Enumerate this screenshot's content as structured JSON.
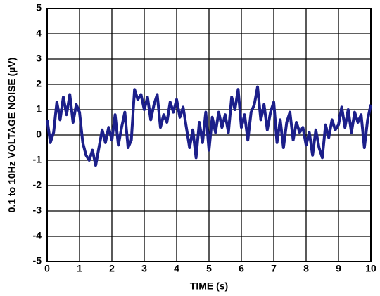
{
  "chart_data": {
    "type": "line",
    "xlabel": "TIME (s)",
    "ylabel": "0.1 to 10Hz VOLTAGE NOISE (µV)",
    "x": [
      0,
      0.1,
      0.2,
      0.3,
      0.4,
      0.5,
      0.6,
      0.7,
      0.8,
      0.9,
      1,
      1.1,
      1.2,
      1.3,
      1.4,
      1.5,
      1.6,
      1.7,
      1.8,
      1.9,
      2,
      2.1,
      2.2,
      2.3,
      2.4,
      2.5,
      2.6,
      2.7,
      2.8,
      2.9,
      3,
      3.1,
      3.2,
      3.3,
      3.4,
      3.5,
      3.6,
      3.7,
      3.8,
      3.9,
      4,
      4.1,
      4.2,
      4.3,
      4.4,
      4.5,
      4.6,
      4.7,
      4.8,
      4.9,
      5,
      5.1,
      5.2,
      5.3,
      5.4,
      5.5,
      5.6,
      5.7,
      5.8,
      5.9,
      6,
      6.1,
      6.2,
      6.3,
      6.4,
      6.5,
      6.6,
      6.7,
      6.8,
      6.9,
      7,
      7.1,
      7.2,
      7.3,
      7.4,
      7.5,
      7.6,
      7.7,
      7.8,
      7.9,
      8,
      8.1,
      8.2,
      8.3,
      8.4,
      8.5,
      8.6,
      8.7,
      8.8,
      8.9,
      9,
      9.1,
      9.2,
      9.3,
      9.4,
      9.5,
      9.6,
      9.7,
      9.8,
      9.9,
      10
    ],
    "values": [
      0.6,
      -0.3,
      0.1,
      1.3,
      0.6,
      1.5,
      0.8,
      1.6,
      0.5,
      1.2,
      0.9,
      -0.3,
      -0.8,
      -1.0,
      -0.6,
      -1.2,
      -0.5,
      0.2,
      -0.3,
      0.3,
      -0.2,
      0.8,
      -0.4,
      0.3,
      0.9,
      -0.5,
      -0.2,
      1.8,
      1.4,
      1.6,
      1.0,
      1.5,
      0.6,
      1.2,
      1.6,
      0.3,
      0.8,
      0.5,
      1.3,
      0.9,
      1.4,
      0.7,
      1.1,
      0.3,
      -0.5,
      0.2,
      -0.9,
      0.5,
      -0.3,
      0.9,
      -0.6,
      0.7,
      0.1,
      0.9,
      0.3,
      0.8,
      0.1,
      1.5,
      1.0,
      1.8,
      0.3,
      0.8,
      -0.2,
      0.9,
      1.2,
      1.9,
      0.6,
      1.2,
      0.2,
      0.9,
      1.3,
      -0.3,
      0.6,
      -0.5,
      0.5,
      0.9,
      -0.2,
      0.5,
      0.1,
      0.3,
      -0.4,
      0.1,
      -0.8,
      0.2,
      -0.5,
      -0.9,
      0.4,
      -0.1,
      0.6,
      0.2,
      0.4,
      1.1,
      0.3,
      1.0,
      0.1,
      0.9,
      0.5,
      0.8,
      -0.5,
      0.6,
      1.2
    ],
    "color": "#1c1f8a",
    "xlim": [
      0,
      10
    ],
    "xticks": [
      0,
      1,
      2,
      3,
      4,
      5,
      6,
      7,
      8,
      9,
      10
    ],
    "ylim": [
      -5,
      5
    ],
    "yticks": [
      -5,
      -4,
      -3,
      -2,
      -1,
      0,
      1,
      2,
      3,
      4,
      5
    ],
    "grid": true
  }
}
